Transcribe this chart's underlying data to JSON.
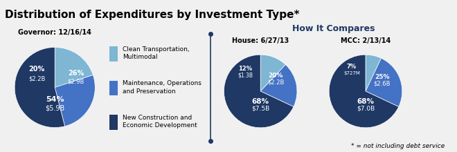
{
  "title": "Distribution of Expenditures by Investment Type",
  "title_star": "*",
  "background_top": "#e0e0e0",
  "background_bottom": "#f5f5f5",
  "colors": {
    "light_blue": "#7eb6d4",
    "medium_blue": "#4472c4",
    "dark_blue": "#1f3864"
  },
  "gov_label": "Governor: 12/16/14",
  "gov_slices": [
    20,
    26,
    54
  ],
  "gov_labels": [
    "20%\n$2.2B",
    "26%\n$2.9B",
    "54%\n$5.9B"
  ],
  "house_label": "House: 6/27/13",
  "house_slices": [
    12,
    20,
    68
  ],
  "house_labels": [
    "12%\n$1.3B",
    "20%\n$2.2B",
    "68%\n$7.5B"
  ],
  "mcc_label": "MCC: 2/13/14",
  "mcc_slices": [
    7,
    25,
    68
  ],
  "mcc_labels": [
    "7%\n$727M",
    "25%\n$2.6B",
    "68%\n$7.0B"
  ],
  "legend_items": [
    "Clean Transportation,\nMultimodal",
    "Maintenance, Operations\nand Preservation",
    "New Construction and\nEconomic Development"
  ],
  "how_it_compares": "How It Compares",
  "footnote": "* = not including debt service"
}
